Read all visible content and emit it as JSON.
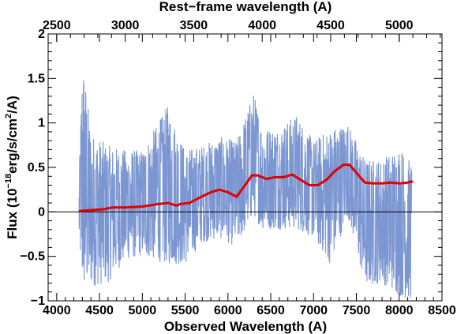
{
  "chart_data": {
    "type": "line",
    "xlabel": "Observed Wavelength (A)",
    "ylabel_main": "Flux (10",
    "ylabel_exp": "−18",
    "ylabel_mid": "erg/s/cm",
    "ylabel_exp2": "2",
    "ylabel_end": "/A)",
    "top_xlabel": "Rest−frame wavelength (A)",
    "xlim": [
      3900,
      8500
    ],
    "ylim": [
      -1.0,
      2.0
    ],
    "x_ticks": [
      "4000",
      "4500",
      "5000",
      "5500",
      "6000",
      "6500",
      "7000",
      "7500",
      "8000",
      "8500"
    ],
    "y_ticks": [
      "−1",
      "−0.5",
      "0",
      "0.5",
      "1",
      "1.5",
      "2"
    ],
    "top_ticks": [
      "2500",
      "3000",
      "3500",
      "4000",
      "4500",
      "5000"
    ],
    "rest_frame_factor": 1.6,
    "zero_line": true,
    "colors": {
      "spectrum": "#7b96d1",
      "smoothed": "#e00000",
      "zero_line": "#000000"
    },
    "series": [
      {
        "kind": "noisy-spectrum",
        "x_range": [
          4260,
          8150
        ],
        "envelope": {
          "x": [
            4260,
            4300,
            4400,
            4600,
            4800,
            5000,
            5300,
            5500,
            5700,
            5900,
            6100,
            6300,
            6400,
            6600,
            6800,
            7000,
            7200,
            7400,
            7600,
            7800,
            8000,
            8150
          ],
          "upper": [
            0.3,
            1.8,
            0.9,
            0.75,
            0.7,
            0.7,
            1.2,
            0.7,
            0.75,
            0.85,
            0.8,
            1.35,
            0.95,
            0.95,
            1.1,
            0.8,
            0.95,
            1.0,
            0.6,
            0.6,
            0.75,
            0.55
          ],
          "lower": [
            -0.3,
            -0.95,
            -0.85,
            -0.8,
            -0.55,
            -0.5,
            -0.6,
            -0.6,
            -0.35,
            -0.3,
            -0.4,
            -0.05,
            -0.2,
            -0.2,
            -0.2,
            -0.3,
            -0.6,
            -0.05,
            -0.85,
            -0.8,
            -0.95,
            -1.0
          ]
        }
      },
      {
        "kind": "smoothed",
        "x": [
          4270,
          4400,
          4550,
          4650,
          4800,
          5000,
          5200,
          5300,
          5400,
          5450,
          5550,
          5650,
          5800,
          5900,
          6000,
          6100,
          6200,
          6280,
          6350,
          6450,
          6550,
          6650,
          6750,
          6850,
          6950,
          7050,
          7150,
          7250,
          7350,
          7420,
          7500,
          7600,
          7700,
          7800,
          7900,
          8000,
          8100,
          8150
        ],
        "y": [
          0.01,
          0.02,
          0.03,
          0.05,
          0.05,
          0.06,
          0.09,
          0.1,
          0.07,
          0.09,
          0.1,
          0.15,
          0.22,
          0.25,
          0.22,
          0.17,
          0.3,
          0.41,
          0.41,
          0.37,
          0.39,
          0.39,
          0.42,
          0.36,
          0.3,
          0.3,
          0.36,
          0.46,
          0.53,
          0.53,
          0.44,
          0.33,
          0.32,
          0.32,
          0.33,
          0.32,
          0.33,
          0.34
        ]
      }
    ]
  }
}
